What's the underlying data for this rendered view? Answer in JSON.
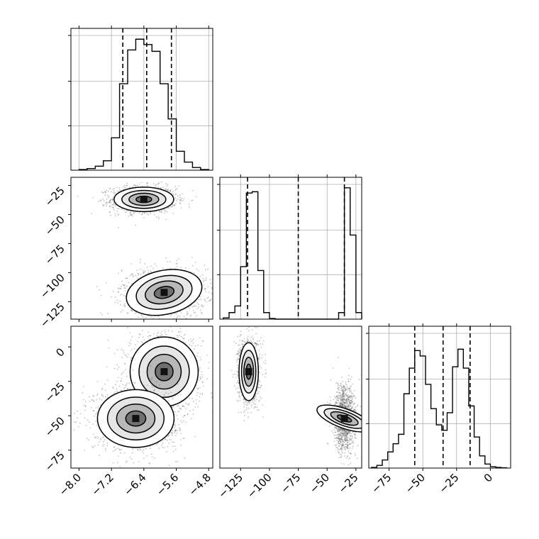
{
  "chart_data": [
    {
      "type": "histogram",
      "panel": "x0-marginal",
      "bins": [
        -8.0,
        -7.8,
        -7.6,
        -7.4,
        -7.2,
        -7.0,
        -6.8,
        -6.6,
        -6.4,
        -6.2,
        -6.0,
        -5.8,
        -5.6,
        -5.4,
        -5.2,
        -5.0,
        -4.8
      ],
      "counts": [
        0.005,
        0.012,
        0.03,
        0.07,
        0.24,
        0.64,
        0.89,
        0.97,
        0.93,
        0.88,
        0.64,
        0.38,
        0.14,
        0.06,
        0.02,
        0.005
      ],
      "quantiles": [
        -6.92,
        -6.33,
        -5.72
      ],
      "xlim": [
        -8.2,
        -4.7
      ],
      "ylim": [
        0,
        1.05
      ],
      "xticks": [
        "-8.0",
        "-7.2",
        "-6.4",
        "-5.6",
        "-4.8"
      ],
      "grid": true
    },
    {
      "type": "histogram",
      "panel": "x1-marginal",
      "bins": [
        -140,
        -135,
        -130,
        -125,
        -120,
        -115,
        -110,
        -105,
        -100,
        -95,
        -90,
        -85,
        -80,
        -75,
        -70,
        -65,
        -60,
        -55,
        -50,
        -45,
        -40,
        -35,
        -30,
        -25,
        -20
      ],
      "counts": [
        0.01,
        0.05,
        0.1,
        0.4,
        0.96,
        0.97,
        0.37,
        0.05,
        0.005,
        0.0,
        0.0,
        0.0,
        0.0,
        0.0,
        0.0,
        0.0,
        0.0,
        0.0,
        0.0,
        0.0,
        0.05,
        1.0,
        0.64,
        0.05
      ],
      "quantiles": [
        -119,
        -75,
        -35
      ],
      "xlim": [
        -143,
        -20
      ],
      "ylim": [
        0,
        1.08
      ],
      "xticks": [
        "-125",
        "-100",
        "-75",
        "-50",
        "-25"
      ],
      "grid": true
    },
    {
      "type": "histogram",
      "panel": "x2-marginal",
      "bins": [
        -88,
        -84,
        -80,
        -76,
        -72,
        -68,
        -64,
        -60,
        -56,
        -52,
        -48,
        -44,
        -40,
        -36,
        -32,
        -28,
        -24,
        -20,
        -16,
        -12,
        -8,
        -4,
        0,
        4,
        8,
        12
      ],
      "counts": [
        0.005,
        0.02,
        0.06,
        0.12,
        0.18,
        0.25,
        0.55,
        0.74,
        0.87,
        0.83,
        0.62,
        0.44,
        0.32,
        0.28,
        0.41,
        0.75,
        0.88,
        0.74,
        0.46,
        0.23,
        0.09,
        0.03,
        0.01,
        0.005,
        0.002
      ],
      "quantiles": [
        -56,
        -35,
        -15
      ],
      "xlim": [
        -90,
        15
      ],
      "ylim": [
        0,
        1.05
      ],
      "xticks": [
        "-75",
        "-50",
        "-25",
        "0"
      ],
      "grid": true
    },
    {
      "type": "scatter",
      "panel": "x0-vs-x1",
      "clusters": [
        {
          "center": [
            -6.4,
            -37
          ],
          "spread": [
            0.35,
            5
          ],
          "weight": 0.5
        },
        {
          "center": [
            -5.9,
            -117
          ],
          "spread": [
            0.45,
            9
          ],
          "weight": 0.5
        }
      ],
      "xlim": [
        -8.2,
        -4.7
      ],
      "ylim": [
        -140,
        -18
      ],
      "yticks": [
        "-25",
        "-50",
        "-75",
        "-100",
        "-125"
      ],
      "contours": true
    },
    {
      "type": "scatter",
      "panel": "x0-vs-x2",
      "clusters": [
        {
          "center": [
            -5.9,
            -18
          ],
          "spread": [
            0.4,
            12
          ],
          "weight": 0.5
        },
        {
          "center": [
            -6.6,
            -52
          ],
          "spread": [
            0.45,
            10
          ],
          "weight": 0.5
        }
      ],
      "xlim": [
        -8.2,
        -4.7
      ],
      "ylim": [
        -88,
        15
      ],
      "yticks": [
        "0",
        "-25",
        "-50",
        "-75"
      ],
      "contours": true
    },
    {
      "type": "scatter",
      "panel": "x1-vs-x2",
      "clusters": [
        {
          "center": [
            -118,
            -18
          ],
          "spread": [
            4,
            10
          ],
          "weight": 0.5
        },
        {
          "center": [
            -35,
            -52
          ],
          "spread": [
            4,
            10
          ],
          "weight": 0.5
        }
      ],
      "xlim": [
        -143,
        -20
      ],
      "ylim": [
        -88,
        15
      ],
      "contours": true
    }
  ]
}
